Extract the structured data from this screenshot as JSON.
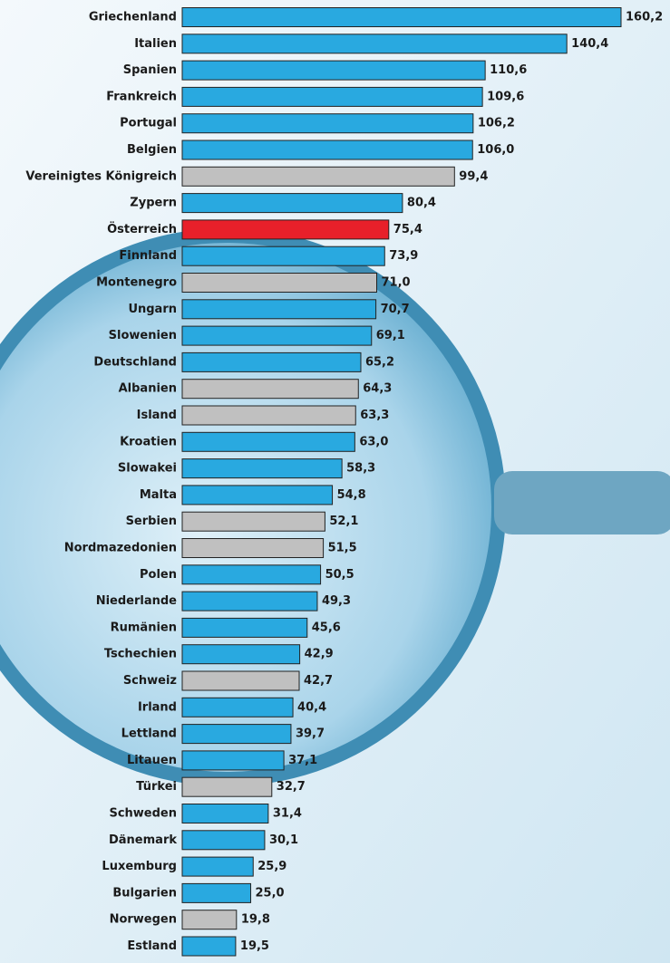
{
  "chart_data": {
    "type": "bar",
    "orientation": "horizontal",
    "categories": [
      "Griechenland",
      "Italien",
      "Spanien",
      "Frankreich",
      "Portugal",
      "Belgien",
      "Vereinigtes Königreich",
      "Zypern",
      "Österreich",
      "Finnland",
      "Montenegro",
      "Ungarn",
      "Slowenien",
      "Deutschland",
      "Albanien",
      "Island",
      "Kroatien",
      "Slowakei",
      "Malta",
      "Serbien",
      "Nordmazedonien",
      "Polen",
      "Niederlande",
      "Rumänien",
      "Tschechien",
      "Schweiz",
      "Irland",
      "Lettland",
      "Litauen",
      "Türkei",
      "Schweden",
      "Dänemark",
      "Luxemburg",
      "Bulgarien",
      "Norwegen",
      "Estland"
    ],
    "values": [
      160.2,
      140.4,
      110.6,
      109.6,
      106.2,
      106.0,
      99.4,
      80.4,
      75.4,
      73.9,
      71.0,
      70.7,
      69.1,
      65.2,
      64.3,
      63.3,
      63.0,
      58.3,
      54.8,
      52.1,
      51.5,
      50.5,
      49.3,
      45.6,
      42.9,
      42.7,
      40.4,
      39.7,
      37.1,
      32.7,
      31.4,
      30.1,
      25.9,
      25.0,
      19.8,
      19.5
    ],
    "value_labels": [
      "160,2",
      "140,4",
      "110,6",
      "109,6",
      "106,2",
      "106,0",
      "99,4",
      "80,4",
      "75,4",
      "73,9",
      "71,0",
      "70,7",
      "69,1",
      "65,2",
      "64,3",
      "63,3",
      "63,0",
      "58,3",
      "54,8",
      "52,1",
      "51,5",
      "50,5",
      "49,3",
      "45,6",
      "42,9",
      "42,7",
      "40,4",
      "39,7",
      "37,1",
      "32,7",
      "31,4",
      "30,1",
      "25,9",
      "25,0",
      "19,8",
      "19,5"
    ],
    "colors": [
      "#29a9e0",
      "#29a9e0",
      "#29a9e0",
      "#29a9e0",
      "#29a9e0",
      "#29a9e0",
      "#c0c0c0",
      "#29a9e0",
      "#e8202a",
      "#29a9e0",
      "#c0c0c0",
      "#29a9e0",
      "#29a9e0",
      "#29a9e0",
      "#c0c0c0",
      "#c0c0c0",
      "#29a9e0",
      "#29a9e0",
      "#29a9e0",
      "#c0c0c0",
      "#c0c0c0",
      "#29a9e0",
      "#29a9e0",
      "#29a9e0",
      "#29a9e0",
      "#c0c0c0",
      "#29a9e0",
      "#29a9e0",
      "#29a9e0",
      "#c0c0c0",
      "#29a9e0",
      "#29a9e0",
      "#29a9e0",
      "#29a9e0",
      "#c0c0c0",
      "#29a9e0"
    ]
  }
}
